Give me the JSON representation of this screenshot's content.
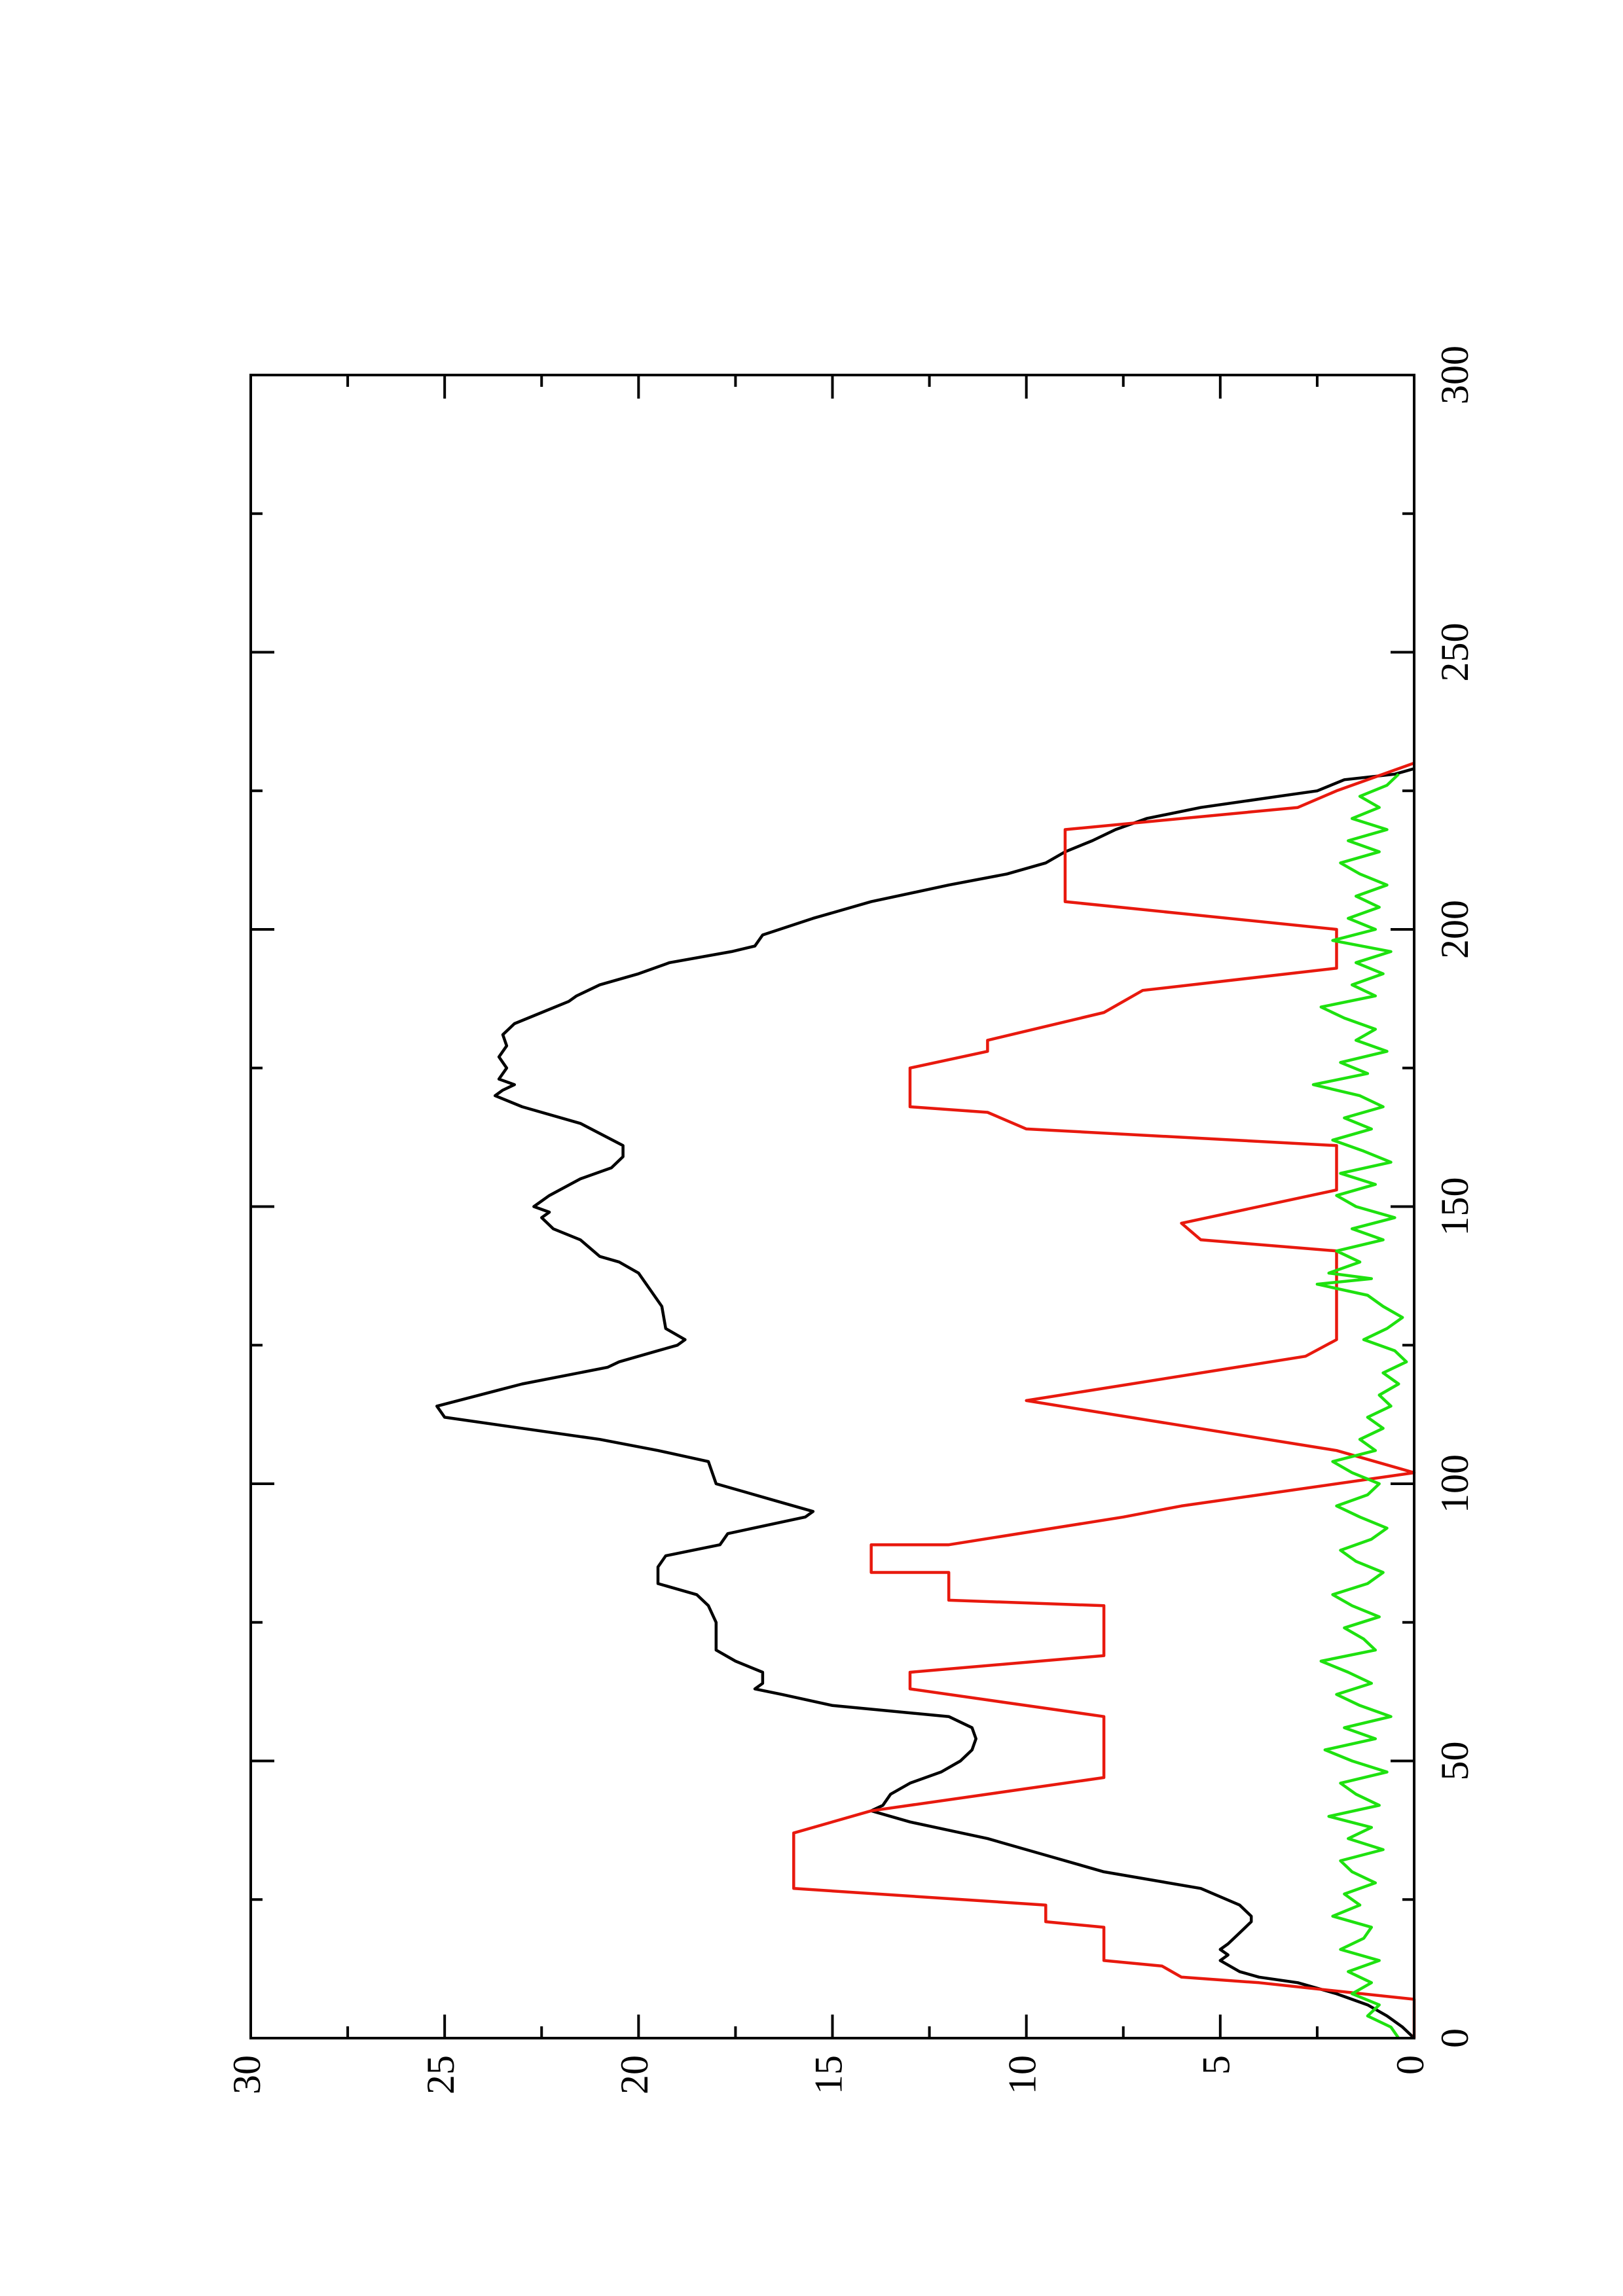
{
  "chart_data": {
    "type": "line",
    "title": "",
    "xlabel": "",
    "ylabel": "",
    "orientation": "rotated-90-ccw",
    "xlim": [
      0,
      300
    ],
    "ylim": [
      0,
      30
    ],
    "x_ticks": [
      0,
      50,
      100,
      150,
      200,
      250,
      300
    ],
    "y_ticks": [
      0,
      5,
      10,
      15,
      20,
      25,
      30
    ],
    "x_tick_labels": [
      "0",
      "50",
      "100",
      "150",
      "200",
      "250",
      "300"
    ],
    "y_tick_labels": [
      "0",
      "5",
      "10",
      "15",
      "20",
      "25",
      "30"
    ],
    "grid": false,
    "legend": "none",
    "series": [
      {
        "color": "#000000",
        "points": [
          [
            0,
            0
          ],
          [
            2,
            0.3
          ],
          [
            4,
            0.7
          ],
          [
            6,
            1.2
          ],
          [
            8,
            2
          ],
          [
            10,
            3
          ],
          [
            11,
            4
          ],
          [
            12,
            4.5
          ],
          [
            14,
            5
          ],
          [
            15,
            4.8
          ],
          [
            16,
            5
          ],
          [
            17,
            4.8
          ],
          [
            19,
            4.5
          ],
          [
            21,
            4.2
          ],
          [
            22,
            4.2
          ],
          [
            24,
            4.5
          ],
          [
            27,
            5.5
          ],
          [
            30,
            8
          ],
          [
            33,
            9.5
          ],
          [
            36,
            11
          ],
          [
            39,
            13
          ],
          [
            41,
            14
          ],
          [
            42,
            13.7
          ],
          [
            44,
            13.5
          ],
          [
            46,
            13
          ],
          [
            48,
            12.2
          ],
          [
            50,
            11.7
          ],
          [
            52,
            11.4
          ],
          [
            54,
            11.3
          ],
          [
            56,
            11.4
          ],
          [
            58,
            12
          ],
          [
            60,
            15
          ],
          [
            62,
            16.3
          ],
          [
            63,
            17
          ],
          [
            64,
            16.8
          ],
          [
            66,
            16.8
          ],
          [
            68,
            17.5
          ],
          [
            70,
            18
          ],
          [
            75,
            18
          ],
          [
            78,
            18.2
          ],
          [
            80,
            18.5
          ],
          [
            82,
            19.5
          ],
          [
            85,
            19.5
          ],
          [
            87,
            19.3
          ],
          [
            89,
            17.9
          ],
          [
            91,
            17.7
          ],
          [
            94,
            15.7
          ],
          [
            95,
            15.5
          ],
          [
            97,
            16.5
          ],
          [
            100,
            18
          ],
          [
            104,
            18.2
          ],
          [
            106,
            19.5
          ],
          [
            108,
            21
          ],
          [
            110,
            23
          ],
          [
            112,
            25
          ],
          [
            114,
            25.2
          ],
          [
            118,
            23
          ],
          [
            121,
            20.8
          ],
          [
            122,
            20.5
          ],
          [
            124,
            19.5
          ],
          [
            125,
            19
          ],
          [
            126,
            18.8
          ],
          [
            128,
            19.3
          ],
          [
            132,
            19.4
          ],
          [
            135,
            19.7
          ],
          [
            138,
            20
          ],
          [
            140,
            20.5
          ],
          [
            141,
            21
          ],
          [
            144,
            21.5
          ],
          [
            146,
            22.2
          ],
          [
            148,
            22.5
          ],
          [
            149,
            22.3
          ],
          [
            150,
            22.7
          ],
          [
            152,
            22.3
          ],
          [
            155,
            21.5
          ],
          [
            157,
            20.7
          ],
          [
            159,
            20.4
          ],
          [
            161,
            20.4
          ],
          [
            165,
            21.5
          ],
          [
            168,
            23
          ],
          [
            170,
            23.7
          ],
          [
            171,
            23.5
          ],
          [
            172,
            23.2
          ],
          [
            173,
            23.6
          ],
          [
            175,
            23.4
          ],
          [
            177,
            23.6
          ],
          [
            179,
            23.4
          ],
          [
            181,
            23.5
          ],
          [
            183,
            23.2
          ],
          [
            185,
            22.5
          ],
          [
            187,
            21.8
          ],
          [
            188,
            21.6
          ],
          [
            190,
            21
          ],
          [
            192,
            20
          ],
          [
            194,
            19.2
          ],
          [
            196,
            17.6
          ],
          [
            197,
            17
          ],
          [
            199,
            16.8
          ],
          [
            202,
            15.5
          ],
          [
            205,
            14
          ],
          [
            208,
            12
          ],
          [
            210,
            10.5
          ],
          [
            212,
            9.5
          ],
          [
            214,
            9
          ],
          [
            216,
            8.3
          ],
          [
            218,
            7.7
          ],
          [
            220,
            6.9
          ],
          [
            222,
            5.5
          ],
          [
            224,
            3.5
          ],
          [
            225,
            2.5
          ],
          [
            227,
            1.8
          ],
          [
            228,
            0.5
          ],
          [
            229,
            0
          ]
        ]
      },
      {
        "color": "#e8190e",
        "points": [
          [
            0,
            0
          ],
          [
            7,
            0
          ],
          [
            10,
            4
          ],
          [
            11,
            6
          ],
          [
            13,
            6.5
          ],
          [
            14,
            8
          ],
          [
            20,
            8
          ],
          [
            21,
            9.5
          ],
          [
            24,
            9.5
          ],
          [
            27,
            16
          ],
          [
            37,
            16
          ],
          [
            41,
            14
          ],
          [
            47,
            8
          ],
          [
            55,
            8
          ],
          [
            58,
            8
          ],
          [
            63,
            13
          ],
          [
            66,
            13
          ],
          [
            69,
            8
          ],
          [
            78,
            8
          ],
          [
            79,
            12
          ],
          [
            84,
            12
          ],
          [
            84,
            14
          ],
          [
            89,
            14
          ],
          [
            89,
            12
          ],
          [
            94,
            7.5
          ],
          [
            96,
            6
          ],
          [
            102,
            0
          ],
          [
            106,
            2
          ],
          [
            115,
            10
          ],
          [
            123,
            2.8
          ],
          [
            126,
            2
          ],
          [
            142,
            2
          ],
          [
            144,
            5.5
          ],
          [
            147,
            6
          ],
          [
            153,
            2
          ],
          [
            161,
            2
          ],
          [
            164,
            10
          ],
          [
            167,
            11
          ],
          [
            168,
            13
          ],
          [
            175,
            13
          ],
          [
            178,
            11
          ],
          [
            180,
            11
          ],
          [
            185,
            8
          ],
          [
            189,
            7
          ],
          [
            193,
            2
          ],
          [
            200,
            2
          ],
          [
            205,
            9
          ],
          [
            218,
            9
          ],
          [
            222,
            3
          ],
          [
            225,
            2
          ],
          [
            230,
            0
          ]
        ]
      },
      {
        "color": "#1ee10f",
        "points": [
          [
            0,
            0.4
          ],
          [
            2,
            0.6
          ],
          [
            4,
            1.2
          ],
          [
            6,
            0.9
          ],
          [
            8,
            1.6
          ],
          [
            10,
            1.1
          ],
          [
            12,
            1.7
          ],
          [
            14,
            0.9
          ],
          [
            16,
            1.9
          ],
          [
            18,
            1.3
          ],
          [
            20,
            1.1
          ],
          [
            22,
            2.1
          ],
          [
            24,
            1.4
          ],
          [
            26,
            1.8
          ],
          [
            28,
            1.0
          ],
          [
            30,
            1.6
          ],
          [
            32,
            1.9
          ],
          [
            34,
            0.8
          ],
          [
            36,
            1.7
          ],
          [
            38,
            1.1
          ],
          [
            40,
            2.2
          ],
          [
            42,
            0.9
          ],
          [
            44,
            1.5
          ],
          [
            46,
            1.9
          ],
          [
            48,
            0.7
          ],
          [
            50,
            1.6
          ],
          [
            52,
            2.3
          ],
          [
            54,
            1.0
          ],
          [
            56,
            1.8
          ],
          [
            58,
            0.6
          ],
          [
            60,
            1.4
          ],
          [
            62,
            2.0
          ],
          [
            64,
            1.1
          ],
          [
            66,
            1.7
          ],
          [
            68,
            2.4
          ],
          [
            70,
            1.0
          ],
          [
            72,
            1.3
          ],
          [
            74,
            1.8
          ],
          [
            76,
            0.9
          ],
          [
            78,
            1.6
          ],
          [
            80,
            2.1
          ],
          [
            82,
            1.2
          ],
          [
            84,
            0.8
          ],
          [
            86,
            1.5
          ],
          [
            88,
            1.9
          ],
          [
            90,
            1.1
          ],
          [
            92,
            0.7
          ],
          [
            94,
            1.4
          ],
          [
            96,
            2.0
          ],
          [
            98,
            1.2
          ],
          [
            100,
            0.9
          ],
          [
            102,
            1.6
          ],
          [
            104,
            2.1
          ],
          [
            106,
            1.0
          ],
          [
            108,
            1.4
          ],
          [
            110,
            0.8
          ],
          [
            112,
            1.2
          ],
          [
            114,
            0.6
          ],
          [
            116,
            0.9
          ],
          [
            118,
            0.4
          ],
          [
            120,
            0.8
          ],
          [
            122,
            0.2
          ],
          [
            124,
            0.5
          ],
          [
            126,
            1.3
          ],
          [
            128,
            0.7
          ],
          [
            130,
            0.3
          ],
          [
            132,
            0.8
          ],
          [
            134,
            1.2
          ],
          [
            136,
            2.5
          ],
          [
            137,
            1.1
          ],
          [
            138,
            2.2
          ],
          [
            140,
            1.4
          ],
          [
            142,
            2.0
          ],
          [
            144,
            0.8
          ],
          [
            146,
            1.6
          ],
          [
            148,
            0.5
          ],
          [
            150,
            1.5
          ],
          [
            152,
            2.0
          ],
          [
            154,
            1.0
          ],
          [
            156,
            1.9
          ],
          [
            158,
            0.6
          ],
          [
            160,
            1.3
          ],
          [
            162,
            2.1
          ],
          [
            164,
            1.1
          ],
          [
            166,
            1.8
          ],
          [
            168,
            0.8
          ],
          [
            170,
            1.4
          ],
          [
            172,
            2.6
          ],
          [
            174,
            1.2
          ],
          [
            176,
            1.9
          ],
          [
            178,
            0.7
          ],
          [
            180,
            1.5
          ],
          [
            182,
            1.0
          ],
          [
            184,
            1.8
          ],
          [
            186,
            2.4
          ],
          [
            188,
            1.0
          ],
          [
            190,
            1.6
          ],
          [
            192,
            0.8
          ],
          [
            194,
            1.5
          ],
          [
            196,
            0.6
          ],
          [
            198,
            2.1
          ],
          [
            200,
            1.0
          ],
          [
            202,
            1.7
          ],
          [
            204,
            0.9
          ],
          [
            206,
            1.5
          ],
          [
            208,
            0.7
          ],
          [
            210,
            1.4
          ],
          [
            212,
            1.9
          ],
          [
            214,
            0.9
          ],
          [
            216,
            1.7
          ],
          [
            218,
            0.7
          ],
          [
            220,
            1.6
          ],
          [
            222,
            0.9
          ],
          [
            224,
            1.4
          ],
          [
            226,
            0.7
          ],
          [
            228,
            0.4
          ]
        ]
      }
    ]
  }
}
